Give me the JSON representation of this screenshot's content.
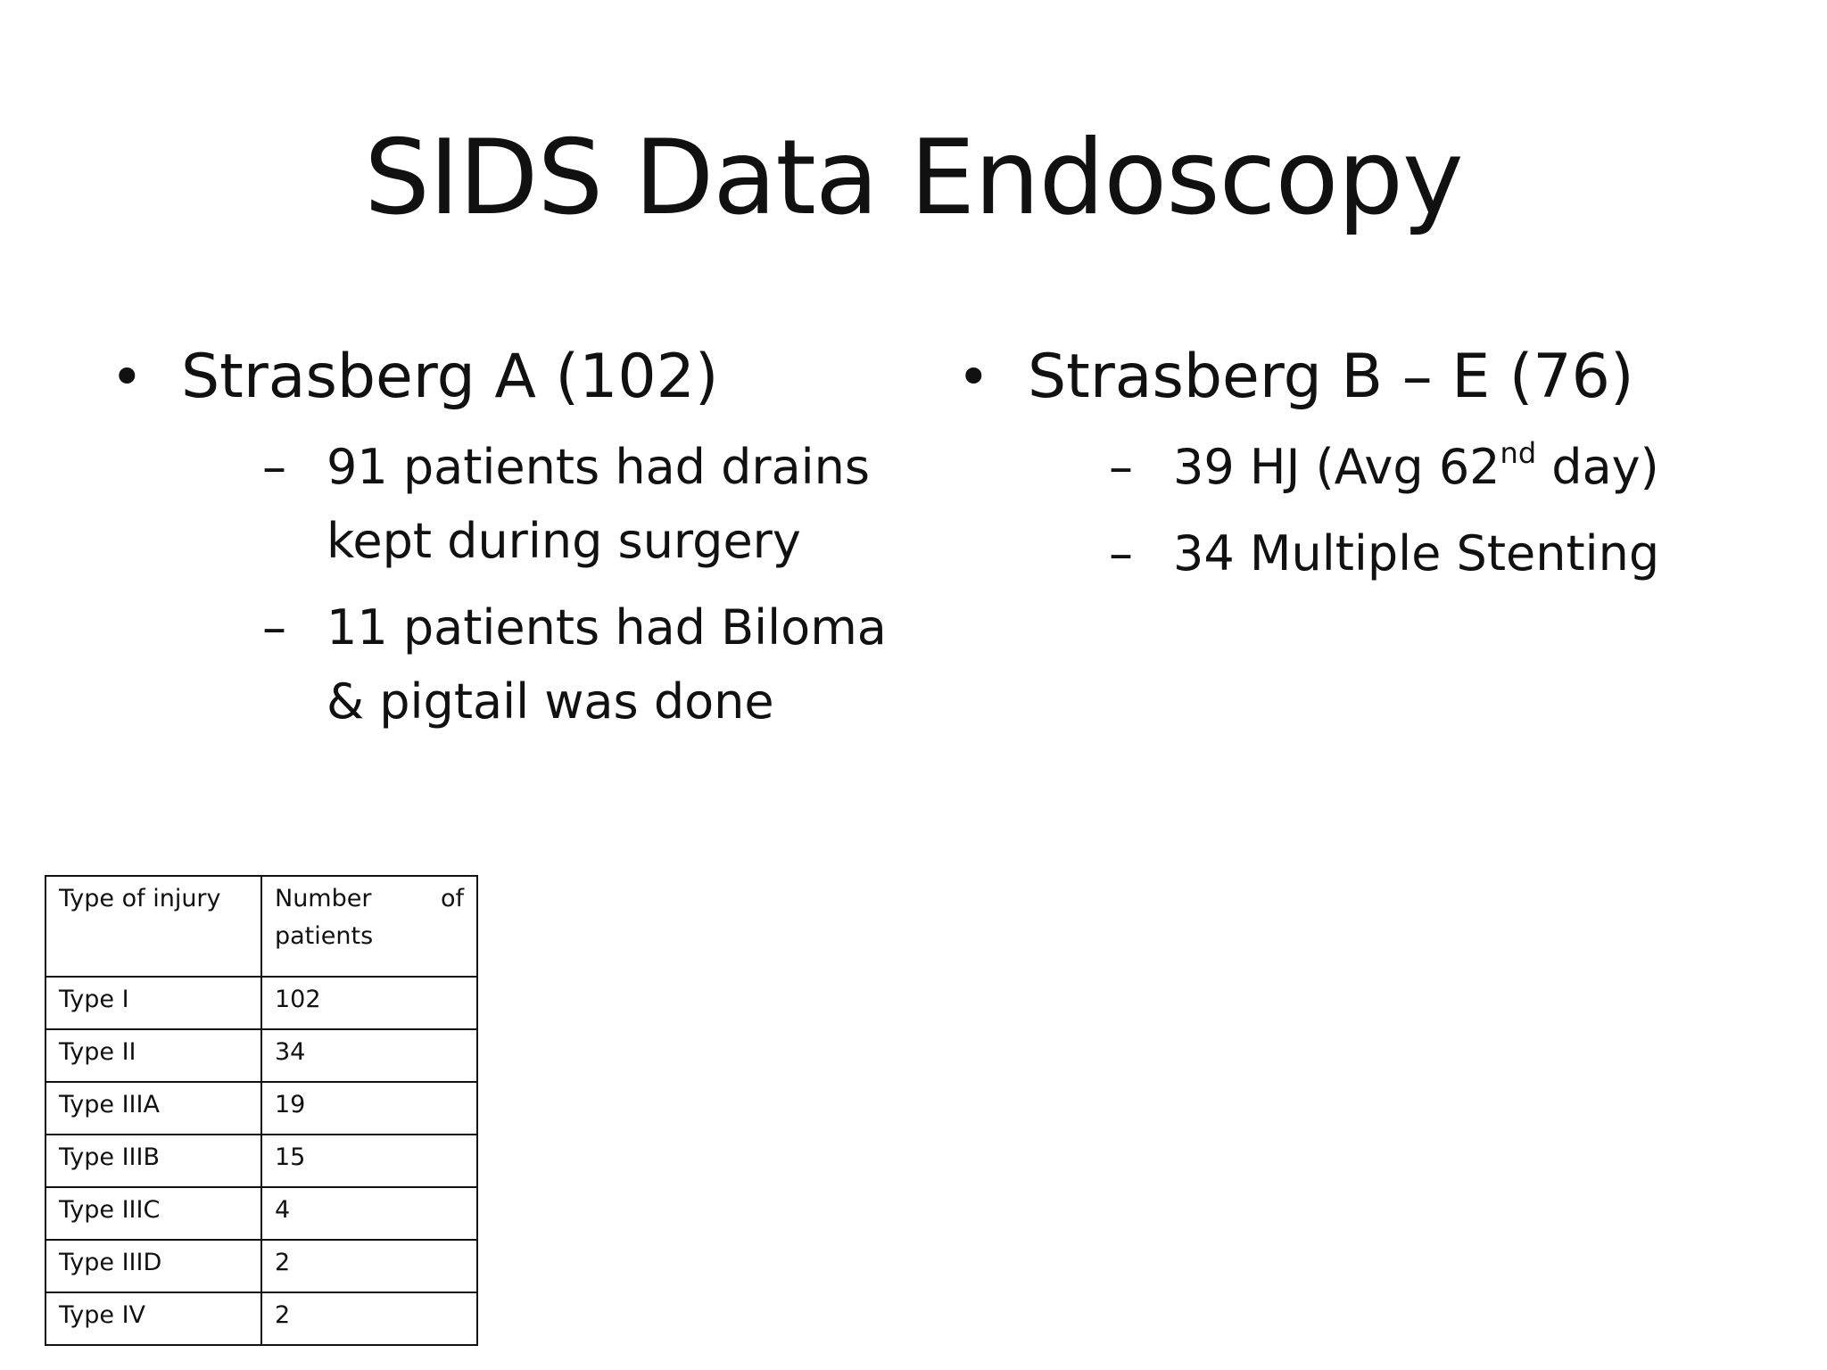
{
  "slide": {
    "title": "SIDS Data Endoscopy"
  },
  "left": {
    "bullet": "Strasberg A (102)",
    "subs": [
      "91 patients had drains kept during surgery",
      "11 patients had Biloma & pigtail was done"
    ]
  },
  "right": {
    "bullet": "Strasberg B – E (76)",
    "sub1_pre": "39 HJ (Avg 62",
    "sub1_sup": "nd",
    "sub1_post": " day)",
    "sub2": "34 Multiple Stenting"
  },
  "symbols": {
    "bullet": "•",
    "dash": "–"
  },
  "table": {
    "headers": [
      "Type of injury",
      "Number of",
      "patients"
    ],
    "rows": [
      [
        "Type I",
        "102"
      ],
      [
        "Type II",
        "34"
      ],
      [
        "Type IIIA",
        "19"
      ],
      [
        "Type IIIB",
        "15"
      ],
      [
        "Type IIIC",
        "4"
      ],
      [
        "Type IIID",
        "2"
      ],
      [
        "Type IV",
        "2"
      ]
    ]
  }
}
